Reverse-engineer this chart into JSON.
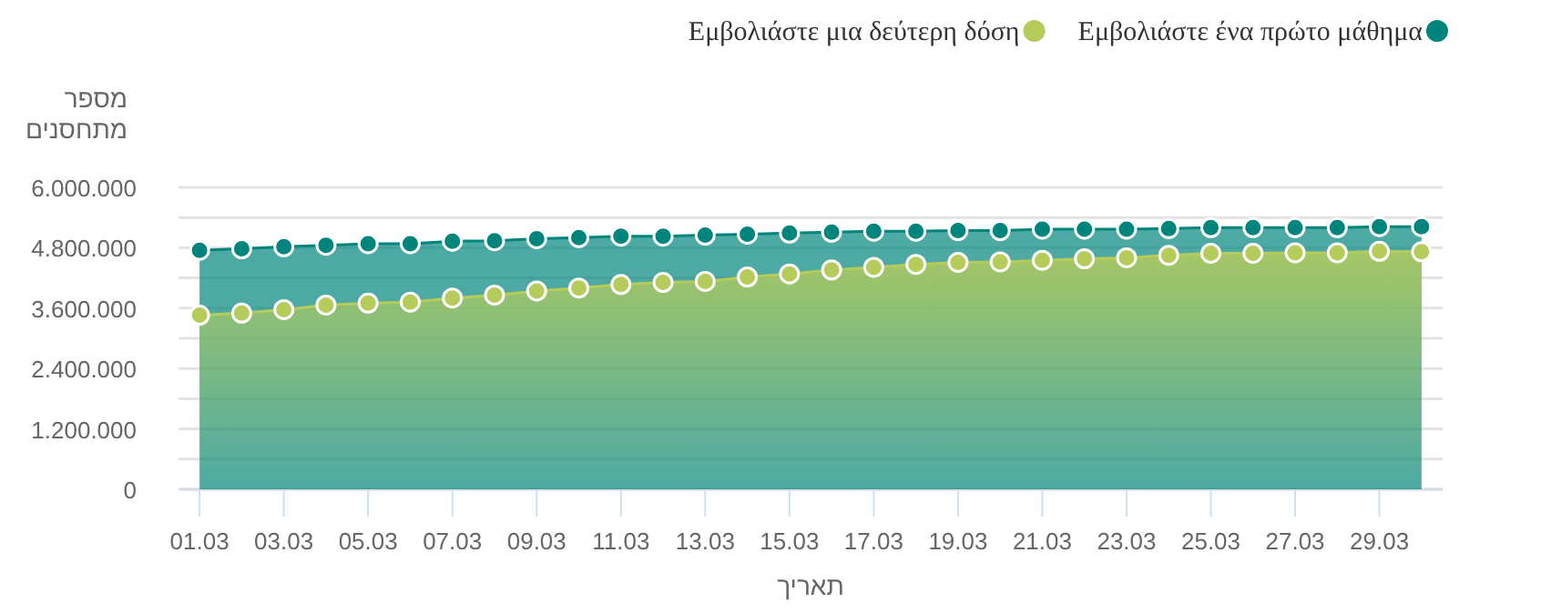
{
  "chart_data": {
    "type": "area",
    "xlabel": "תאריך",
    "ylabel": "מספר מתחסנים",
    "categories": [
      "01.03",
      null,
      "03.03",
      null,
      "05.03",
      null,
      "07.03",
      null,
      "09.03",
      null,
      "11.03",
      null,
      "13.03",
      null,
      "15.03",
      null,
      "17.03",
      null,
      "19.03",
      null,
      "21.03",
      null,
      "23.03",
      null,
      "25.03",
      null,
      "27.03",
      null,
      "29.03",
      null
    ],
    "ylim": [
      0,
      6000000
    ],
    "yticks": [
      0,
      {
        "value": 600000,
        "label": null
      },
      {
        "value": 1200000,
        "label": "1.200.000"
      },
      {
        "value": 1800000,
        "label": null
      },
      {
        "value": 2400000,
        "label": "2.400.000"
      },
      {
        "value": 3000000,
        "label": null
      },
      {
        "value": 3600000,
        "label": "3.600.000"
      },
      {
        "value": 4200000,
        "label": null
      },
      {
        "value": 4800000,
        "label": "4.800.000"
      },
      {
        "value": 5400000,
        "label": null
      },
      {
        "value": 6000000,
        "label": "6.000.000"
      }
    ],
    "grid": "y",
    "legend": "top right",
    "marker": "circle",
    "series": [
      {
        "name": "Εμβολιάστε μια δεύτερη δόση",
        "color": "#b5cc5a",
        "values": [
          3460000,
          3500000,
          3570000,
          3660000,
          3700000,
          3720000,
          3800000,
          3860000,
          3940000,
          4000000,
          4070000,
          4110000,
          4130000,
          4220000,
          4280000,
          4360000,
          4410000,
          4470000,
          4510000,
          4520000,
          4550000,
          4580000,
          4600000,
          4650000,
          4690000,
          4690000,
          4700000,
          4700000,
          4730000,
          4720000
        ]
      },
      {
        "name": "Εμβολιάστε ένα πρώτο μάθημα",
        "color": "#00857c",
        "values": [
          4750000,
          4780000,
          4820000,
          4850000,
          4880000,
          4880000,
          4930000,
          4940000,
          4980000,
          5000000,
          5030000,
          5030000,
          5050000,
          5070000,
          5090000,
          5110000,
          5130000,
          5130000,
          5140000,
          5140000,
          5170000,
          5170000,
          5170000,
          5180000,
          5200000,
          5200000,
          5200000,
          5200000,
          5220000,
          5220000
        ]
      }
    ]
  }
}
